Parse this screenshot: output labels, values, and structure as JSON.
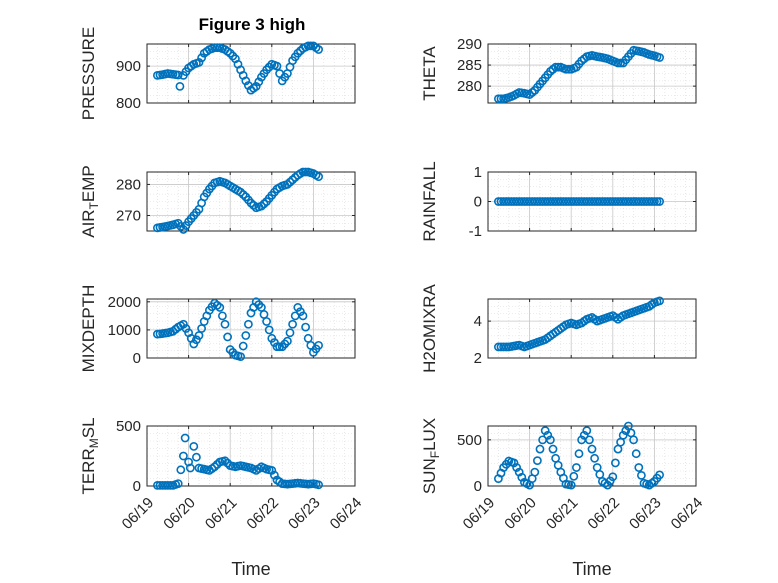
{
  "figure_title": "Figure 3 high",
  "chart_data": [
    {
      "type": "scatter",
      "ylabel": "PRESSURE",
      "xlabel": "",
      "ylim": [
        800,
        960
      ],
      "yticks": [
        800,
        900
      ],
      "xlim": [
        "06/19",
        "06/24"
      ],
      "xticks": [
        "06/19",
        "06/20",
        "06/21",
        "06/22",
        "06/23",
        "06/24"
      ],
      "grid": true,
      "marker": "circle",
      "title": "Figure 3 high",
      "x": [
        "06/19 06:00",
        "06/19 09:00",
        "06/19 12:00",
        "06/19 15:00",
        "06/19 18:00",
        "06/19 19:00",
        "06/19 21:00",
        "06/20 00:00",
        "06/20 03:00",
        "06/20 06:00",
        "06/20 09:00",
        "06/20 12:00",
        "06/20 15:00",
        "06/20 18:00",
        "06/20 21:00",
        "06/21 00:00",
        "06/21 03:00",
        "06/21 06:00",
        "06/21 09:00",
        "06/21 12:00",
        "06/21 15:00",
        "06/21 18:00",
        "06/21 21:00",
        "06/22 00:00",
        "06/22 03:00",
        "06/22 06:00",
        "06/22 09:00",
        "06/22 12:00",
        "06/22 15:00",
        "06/22 18:00",
        "06/22 21:00",
        "06/23 00:00",
        "06/23 03:00"
      ],
      "y": [
        875,
        877,
        880,
        878,
        876,
        845,
        875,
        895,
        905,
        910,
        935,
        945,
        950,
        950,
        945,
        935,
        920,
        890,
        860,
        835,
        845,
        870,
        890,
        905,
        900,
        860,
        880,
        915,
        935,
        948,
        955,
        955,
        945
      ]
    },
    {
      "type": "scatter",
      "ylabel": "THETA",
      "xlabel": "",
      "ylim": [
        276,
        290
      ],
      "yticks": [
        280,
        285,
        290
      ],
      "xlim": [
        "06/19",
        "06/24"
      ],
      "xticks": [
        "06/19",
        "06/20",
        "06/21",
        "06/22",
        "06/23",
        "06/24"
      ],
      "grid": true,
      "marker": "circle",
      "x": [
        "06/19 06:00",
        "06/19 09:00",
        "06/19 12:00",
        "06/19 15:00",
        "06/19 18:00",
        "06/19 21:00",
        "06/20 00:00",
        "06/20 03:00",
        "06/20 06:00",
        "06/20 09:00",
        "06/20 12:00",
        "06/20 15:00",
        "06/20 18:00",
        "06/20 21:00",
        "06/21 00:00",
        "06/21 03:00",
        "06/21 06:00",
        "06/21 09:00",
        "06/21 12:00",
        "06/21 15:00",
        "06/21 18:00",
        "06/21 21:00",
        "06/22 00:00",
        "06/22 03:00",
        "06/22 06:00",
        "06/22 09:00",
        "06/22 12:00",
        "06/22 15:00",
        "06/22 18:00",
        "06/22 21:00",
        "06/23 00:00",
        "06/23 03:00"
      ],
      "y": [
        277,
        277,
        277.3,
        277.8,
        278.5,
        278.3,
        278,
        279,
        280.5,
        282,
        283.5,
        284.5,
        284.5,
        284,
        284,
        284.5,
        286,
        287,
        287.3,
        287,
        286.8,
        286.5,
        286,
        285.5,
        285.5,
        287,
        288.5,
        288.3,
        288,
        287.5,
        287.2,
        286.8
      ]
    },
    {
      "type": "scatter",
      "ylabel": "AIR_TEMP",
      "xlabel": "",
      "ylim": [
        265,
        284
      ],
      "yticks": [
        270,
        280
      ],
      "xlim": [
        "06/19",
        "06/24"
      ],
      "xticks": [
        "06/19",
        "06/20",
        "06/21",
        "06/22",
        "06/23",
        "06/24"
      ],
      "grid": true,
      "marker": "circle",
      "x": [
        "06/19 06:00",
        "06/19 09:00",
        "06/19 12:00",
        "06/19 15:00",
        "06/19 18:00",
        "06/19 21:00",
        "06/20 00:00",
        "06/20 03:00",
        "06/20 06:00",
        "06/20 09:00",
        "06/20 12:00",
        "06/20 15:00",
        "06/20 18:00",
        "06/20 21:00",
        "06/21 00:00",
        "06/21 03:00",
        "06/21 06:00",
        "06/21 09:00",
        "06/21 12:00",
        "06/21 15:00",
        "06/21 18:00",
        "06/21 21:00",
        "06/22 00:00",
        "06/22 03:00",
        "06/22 06:00",
        "06/22 09:00",
        "06/22 12:00",
        "06/22 15:00",
        "06/22 18:00",
        "06/22 21:00",
        "06/23 00:00",
        "06/23 03:00"
      ],
      "y": [
        266,
        266.3,
        266.6,
        267,
        267.5,
        265.5,
        268,
        270,
        272,
        276,
        278.5,
        280.5,
        281,
        280.5,
        279.5,
        278.5,
        277.5,
        276,
        274,
        272.5,
        273,
        274.5,
        276.5,
        278.5,
        279.5,
        280,
        281.5,
        283,
        284,
        284,
        283.5,
        282.5
      ]
    },
    {
      "type": "scatter",
      "ylabel": "RAINFALL",
      "xlabel": "",
      "ylim": [
        -1,
        1
      ],
      "yticks": [
        -1,
        0,
        1
      ],
      "xlim": [
        "06/19",
        "06/24"
      ],
      "xticks": [
        "06/19",
        "06/20",
        "06/21",
        "06/22",
        "06/23",
        "06/24"
      ],
      "grid": true,
      "marker": "circle",
      "x": [
        "06/19 06:00",
        "06/19 12:00",
        "06/19 18:00",
        "06/20 00:00",
        "06/20 06:00",
        "06/20 12:00",
        "06/20 18:00",
        "06/21 00:00",
        "06/21 06:00",
        "06/21 12:00",
        "06/21 18:00",
        "06/22 00:00",
        "06/22 06:00",
        "06/22 12:00",
        "06/22 18:00",
        "06/23 00:00",
        "06/23 03:00"
      ],
      "y": [
        0,
        0,
        0,
        0,
        0,
        0,
        0,
        0,
        0,
        0,
        0,
        0,
        0,
        0,
        0,
        0,
        0
      ]
    },
    {
      "type": "scatter",
      "ylabel": "MIXDEPTH",
      "xlabel": "",
      "ylim": [
        0,
        2100
      ],
      "yticks": [
        0,
        1000,
        2000
      ],
      "xlim": [
        "06/19",
        "06/24"
      ],
      "xticks": [
        "06/19",
        "06/20",
        "06/21",
        "06/22",
        "06/23",
        "06/24"
      ],
      "grid": true,
      "marker": "circle",
      "x": [
        "06/19 06:00",
        "06/19 09:00",
        "06/19 12:00",
        "06/19 15:00",
        "06/19 18:00",
        "06/19 21:00",
        "06/20 00:00",
        "06/20 03:00",
        "06/20 06:00",
        "06/20 09:00",
        "06/20 12:00",
        "06/20 15:00",
        "06/20 18:00",
        "06/20 21:00",
        "06/21 00:00",
        "06/21 03:00",
        "06/21 06:00",
        "06/21 09:00",
        "06/21 12:00",
        "06/21 15:00",
        "06/21 18:00",
        "06/21 21:00",
        "06/22 00:00",
        "06/22 03:00",
        "06/22 06:00",
        "06/22 09:00",
        "06/22 12:00",
        "06/22 15:00",
        "06/22 18:00",
        "06/22 21:00",
        "06/23 00:00",
        "06/23 03:00"
      ],
      "y": [
        850,
        870,
        900,
        950,
        1100,
        1200,
        900,
        500,
        800,
        1300,
        1700,
        1950,
        1800,
        1200,
        300,
        100,
        50,
        800,
        1600,
        2000,
        1800,
        1300,
        700,
        400,
        400,
        600,
        1200,
        1800,
        1500,
        700,
        200,
        450
      ]
    },
    {
      "type": "scatter",
      "ylabel": "H2OMIXRA",
      "xlabel": "",
      "ylim": [
        2,
        5.2
      ],
      "yticks": [
        2,
        4
      ],
      "xlim": [
        "06/19",
        "06/24"
      ],
      "xticks": [
        "06/19",
        "06/20",
        "06/21",
        "06/22",
        "06/23",
        "06/24"
      ],
      "grid": true,
      "marker": "circle",
      "x": [
        "06/19 06:00",
        "06/19 09:00",
        "06/19 12:00",
        "06/19 15:00",
        "06/19 18:00",
        "06/19 21:00",
        "06/20 00:00",
        "06/20 03:00",
        "06/20 06:00",
        "06/20 09:00",
        "06/20 12:00",
        "06/20 15:00",
        "06/20 18:00",
        "06/20 21:00",
        "06/21 00:00",
        "06/21 03:00",
        "06/21 06:00",
        "06/21 09:00",
        "06/21 12:00",
        "06/21 15:00",
        "06/21 18:00",
        "06/21 21:00",
        "06/22 00:00",
        "06/22 03:00",
        "06/22 06:00",
        "06/22 09:00",
        "06/22 12:00",
        "06/22 15:00",
        "06/22 18:00",
        "06/22 21:00",
        "06/23 00:00",
        "06/23 03:00"
      ],
      "y": [
        2.6,
        2.6,
        2.6,
        2.65,
        2.7,
        2.6,
        2.7,
        2.8,
        2.9,
        3.0,
        3.2,
        3.4,
        3.6,
        3.8,
        3.9,
        3.8,
        3.9,
        4.1,
        4.2,
        4.0,
        4.1,
        4.2,
        4.3,
        4.1,
        4.3,
        4.4,
        4.5,
        4.6,
        4.7,
        4.8,
        5.0,
        5.1
      ]
    },
    {
      "type": "scatter",
      "ylabel": "TERR_MSL",
      "xlabel": "Time",
      "ylim": [
        0,
        500
      ],
      "yticks": [
        0,
        500
      ],
      "xlim": [
        "06/19",
        "06/24"
      ],
      "xticks": [
        "06/19",
        "06/20",
        "06/21",
        "06/22",
        "06/23",
        "06/24"
      ],
      "grid": true,
      "marker": "circle",
      "x": [
        "06/19 06:00",
        "06/19 09:00",
        "06/19 12:00",
        "06/19 15:00",
        "06/19 18:00",
        "06/19 21:00",
        "06/19 22:00",
        "06/20 00:00",
        "06/20 01:00",
        "06/20 03:00",
        "06/20 06:00",
        "06/20 09:00",
        "06/20 12:00",
        "06/20 15:00",
        "06/20 18:00",
        "06/20 21:00",
        "06/21 00:00",
        "06/21 03:00",
        "06/21 06:00",
        "06/21 09:00",
        "06/21 12:00",
        "06/21 15:00",
        "06/21 18:00",
        "06/21 21:00",
        "06/22 00:00",
        "06/22 03:00",
        "06/22 06:00",
        "06/22 09:00",
        "06/22 12:00",
        "06/22 15:00",
        "06/22 18:00",
        "06/22 21:00",
        "06/23 00:00",
        "06/23 03:00"
      ],
      "y": [
        5,
        5,
        5,
        5,
        20,
        250,
        400,
        200,
        150,
        330,
        150,
        140,
        130,
        160,
        200,
        210,
        170,
        160,
        170,
        160,
        150,
        130,
        160,
        140,
        130,
        50,
        20,
        15,
        20,
        25,
        20,
        15,
        20,
        10
      ]
    },
    {
      "type": "scatter",
      "ylabel": "SUN_FLUX",
      "xlabel": "Time",
      "ylim": [
        0,
        650
      ],
      "yticks": [
        0,
        500
      ],
      "xlim": [
        "06/19",
        "06/24"
      ],
      "xticks": [
        "06/19",
        "06/20",
        "06/21",
        "06/22",
        "06/23",
        "06/24"
      ],
      "grid": true,
      "marker": "circle",
      "x": [
        "06/19 06:00",
        "06/19 09:00",
        "06/19 12:00",
        "06/19 15:00",
        "06/19 18:00",
        "06/19 21:00",
        "06/20 00:00",
        "06/20 03:00",
        "06/20 06:00",
        "06/20 09:00",
        "06/20 12:00",
        "06/20 15:00",
        "06/20 18:00",
        "06/20 21:00",
        "06/21 00:00",
        "06/21 03:00",
        "06/21 06:00",
        "06/21 09:00",
        "06/21 12:00",
        "06/21 15:00",
        "06/21 18:00",
        "06/21 21:00",
        "06/22 00:00",
        "06/22 03:00",
        "06/22 06:00",
        "06/22 09:00",
        "06/22 12:00",
        "06/22 15:00",
        "06/22 18:00",
        "06/22 21:00",
        "06/23 00:00",
        "06/23 03:00"
      ],
      "y": [
        80,
        200,
        270,
        250,
        150,
        40,
        10,
        150,
        400,
        600,
        500,
        300,
        150,
        20,
        10,
        200,
        500,
        600,
        400,
        200,
        50,
        10,
        100,
        400,
        550,
        650,
        500,
        200,
        30,
        10,
        50,
        120
      ]
    }
  ]
}
